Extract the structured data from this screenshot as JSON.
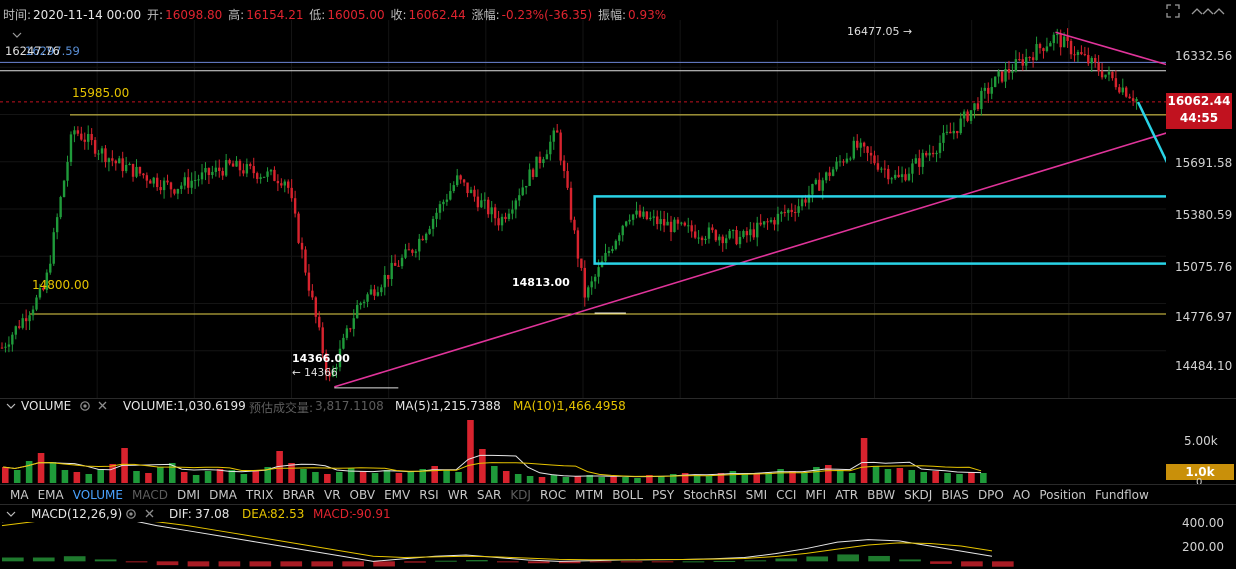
{
  "header": {
    "time_label": "时间:",
    "time_value": "2020-11-14 00:00",
    "open_label": "开:",
    "open_value": "16098.80",
    "high_label": "高:",
    "high_value": "16154.21",
    "low_label": "低:",
    "low_value": "16005.00",
    "close_label": "收:",
    "close_value": "16062.44",
    "change_label": "涨幅:",
    "change_value": "-0.23%(-36.35)",
    "amplitude_label": "振幅:",
    "amplitude_value": "0.93%"
  },
  "annotations": {
    "overlay_values": "16247.76",
    "overlay_values2": "16297.59",
    "level_15985": "15985.00",
    "level_14800": "14800.00",
    "high_marker": "16477.05 →",
    "low_14366": "14366.00",
    "low_14366_short": "← 14366",
    "low_14813": "14813.00"
  },
  "price_axis": {
    "ticks": [
      "16332.56",
      "16062.44",
      "15691.58",
      "15380.59",
      "15075.76",
      "14776.97",
      "14484.10"
    ],
    "current_price": "16062.44",
    "countdown": "44:55"
  },
  "volume_panel": {
    "name": "VOLUME",
    "volume_label": "VOLUME:",
    "volume_value": "1,030.6199",
    "est_label": "预估成交量:",
    "est_value": "3,817.1108",
    "ma5_label": "MA(5):",
    "ma5_value": "1,215.7388",
    "ma10_label": "MA(10):",
    "ma10_value": "1,466.4958",
    "ticks": [
      "5.00k",
      "1.0k",
      "0"
    ]
  },
  "indicator_tabs": [
    "MA",
    "EMA",
    "VOLUME",
    "MACD",
    "DMI",
    "DMA",
    "TRIX",
    "BRAR",
    "VR",
    "OBV",
    "EMV",
    "RSI",
    "WR",
    "SAR",
    "KDJ",
    "ROC",
    "MTM",
    "BOLL",
    "PSY",
    "StochRSI",
    "SMI",
    "CCI",
    "MFI",
    "ATR",
    "BBW",
    "SKDJ",
    "BIAS",
    "DPO",
    "AO",
    "Position",
    "Fundflow"
  ],
  "active_tab": "VOLUME",
  "dim_tabs": [
    "MACD",
    "KDJ"
  ],
  "macd_panel": {
    "name": "MACD(12,26,9)",
    "dif_label": "DIF:",
    "dif_value": "37.08",
    "dea_label": "DEA:",
    "dea_value": "82.53",
    "macd_label": "MACD:",
    "macd_value": "-90.91",
    "ticks": [
      "400.00",
      "200.00"
    ]
  },
  "colors": {
    "up": "#1f9a3a",
    "down": "#d8232e",
    "trendline": "#e0349a",
    "box": "#29d3e6",
    "arrow": "#29d3e6",
    "level": "#e8d44a",
    "current_price_tag": "#c1121f",
    "volume_tag": "#c9900a"
  },
  "chart_data": {
    "type": "candlestick",
    "ylim": [
      14300,
      16550
    ],
    "close_path": [
      {
        "x": 0,
        "y": 14600
      },
      {
        "x": 0.03,
        "y": 14950
      },
      {
        "x": 0.05,
        "y": 15900
      },
      {
        "x": 0.08,
        "y": 15700
      },
      {
        "x": 0.12,
        "y": 15550
      },
      {
        "x": 0.16,
        "y": 15680
      },
      {
        "x": 0.2,
        "y": 15600
      },
      {
        "x": 0.23,
        "y": 14400
      },
      {
        "x": 0.25,
        "y": 14850
      },
      {
        "x": 0.29,
        "y": 15200
      },
      {
        "x": 0.32,
        "y": 15600
      },
      {
        "x": 0.35,
        "y": 15350
      },
      {
        "x": 0.39,
        "y": 15880
      },
      {
        "x": 0.41,
        "y": 14900
      },
      {
        "x": 0.44,
        "y": 15400
      },
      {
        "x": 0.48,
        "y": 15300
      },
      {
        "x": 0.52,
        "y": 15250
      },
      {
        "x": 0.56,
        "y": 15450
      },
      {
        "x": 0.6,
        "y": 15800
      },
      {
        "x": 0.63,
        "y": 15600
      },
      {
        "x": 0.67,
        "y": 15900
      },
      {
        "x": 0.7,
        "y": 16200
      },
      {
        "x": 0.74,
        "y": 16450
      },
      {
        "x": 0.78,
        "y": 16200
      },
      {
        "x": 0.8,
        "y": 16062
      }
    ],
    "x_range": [
      0,
      0.8
    ],
    "levels": [
      15985,
      14800,
      16247.76,
      16297.59
    ],
    "high_marker": 16477.05,
    "projection": [
      {
        "x": 0.8,
        "y": 16062
      },
      {
        "x": 0.833,
        "y": 15480
      },
      {
        "x": 0.868,
        "y": 15700
      }
    ],
    "consolidation_box": {
      "x0": 0.418,
      "x1": 0.944,
      "y0": 15100,
      "y1": 15500
    },
    "trendlines": [
      {
        "x0": 0.235,
        "y0": 14366,
        "x1": 0.91,
        "y1": 16110
      },
      {
        "x0": 0.742,
        "y0": 16477,
        "x1": 0.826,
        "y1": 16270
      }
    ],
    "volume": [
      1.6,
      1.3,
      2.2,
      3.0,
      2.1,
      1.3,
      1.1,
      0.9,
      1.4,
      1.9,
      3.5,
      1.2,
      1.0,
      1.6,
      2.0,
      1.1,
      0.8,
      1.2,
      1.4,
      1.3,
      0.9,
      1.2,
      1.6,
      3.2,
      2.0,
      1.4,
      1.1,
      0.9,
      1.1,
      1.5,
      1.2,
      1.0,
      1.3,
      1.0,
      1.2,
      1.4,
      1.7,
      1.3,
      1.1,
      6.3,
      3.4,
      1.7,
      1.2,
      0.9,
      0.7,
      0.6,
      0.8,
      0.6,
      0.7,
      0.8,
      0.6,
      0.7,
      0.6,
      0.5,
      0.8,
      0.7,
      0.9,
      1.0,
      0.8,
      0.7,
      1.0,
      1.2,
      1.0,
      0.9,
      1.1,
      1.4,
      1.2,
      1.0,
      1.6,
      1.8,
      1.3,
      1.0,
      4.5,
      1.7,
      1.4,
      1.5,
      1.3,
      1.1,
      1.2,
      1.0,
      0.9,
      1.1,
      1.0
    ],
    "macd_dif": [
      310,
      340,
      380,
      360,
      330,
      280,
      240,
      200,
      160,
      120,
      80,
      40,
      0,
      20,
      40,
      50,
      30,
      10,
      0,
      5,
      10,
      12,
      14,
      20,
      30,
      60,
      100,
      150,
      170,
      160,
      120,
      80,
      40
    ],
    "macd_dea": [
      280,
      310,
      340,
      345,
      335,
      310,
      280,
      240,
      200,
      160,
      120,
      80,
      40,
      30,
      35,
      40,
      35,
      25,
      15,
      12,
      12,
      13,
      14,
      17,
      22,
      38,
      62,
      96,
      128,
      145,
      140,
      120,
      82
    ]
  }
}
